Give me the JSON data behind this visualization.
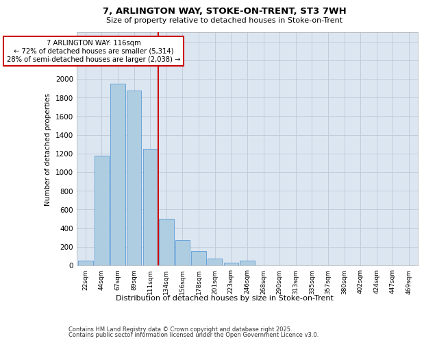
{
  "title": "7, ARLINGTON WAY, STOKE-ON-TRENT, ST3 7WH",
  "subtitle": "Size of property relative to detached houses in Stoke-on-Trent",
  "xlabel": "Distribution of detached houses by size in Stoke-on-Trent",
  "ylabel": "Number of detached properties",
  "categories": [
    "22sqm",
    "44sqm",
    "67sqm",
    "89sqm",
    "111sqm",
    "134sqm",
    "156sqm",
    "178sqm",
    "201sqm",
    "223sqm",
    "246sqm",
    "268sqm",
    "290sqm",
    "313sqm",
    "335sqm",
    "357sqm",
    "380sqm",
    "402sqm",
    "424sqm",
    "447sqm",
    "469sqm"
  ],
  "values": [
    50,
    1175,
    1950,
    1875,
    1250,
    500,
    270,
    155,
    70,
    30,
    55,
    0,
    0,
    0,
    0,
    0,
    0,
    0,
    0,
    0,
    0
  ],
  "bar_color": "#aecde1",
  "bar_edge_color": "#5b9bd5",
  "vline_x": 4.5,
  "vline_color": "#cc0000",
  "annotation_text": "7 ARLINGTON WAY: 116sqm\n← 72% of detached houses are smaller (5,314)\n28% of semi-detached houses are larger (2,038) →",
  "annotation_box_color": "#cc0000",
  "annotation_bg": "#ffffff",
  "ylim": [
    0,
    2500
  ],
  "yticks": [
    0,
    200,
    400,
    600,
    800,
    1000,
    1200,
    1400,
    1600,
    1800,
    2000,
    2200,
    2400
  ],
  "grid_color": "#c0c8d8",
  "bg_color": "#dce6f1",
  "footer1": "Contains HM Land Registry data © Crown copyright and database right 2025.",
  "footer2": "Contains public sector information licensed under the Open Government Licence v3.0."
}
